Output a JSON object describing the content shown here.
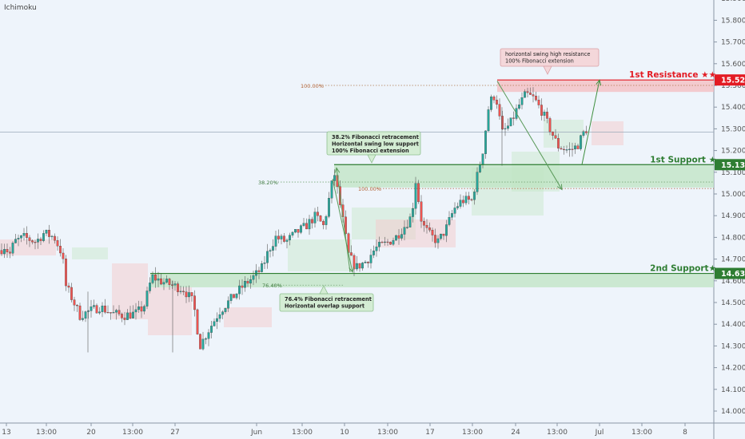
{
  "indicator_label": "Ichimoku",
  "chart_data": {
    "type": "candlestick",
    "ylim": [
      13.95,
      15.92
    ],
    "y_ticks": [
      15.9,
      15.8,
      15.7,
      15.6,
      15.5,
      15.4,
      15.3,
      15.2,
      15.1,
      15.0,
      14.9,
      14.8,
      14.7,
      14.6,
      14.5,
      14.4,
      14.3,
      14.2,
      14.1,
      14.0
    ],
    "y_tick_labels": [
      "15.900",
      "15.800",
      "15.700",
      "15.600",
      "15.500",
      "15.400",
      "15.300",
      "15.200",
      "15.100",
      "15.000",
      "14.900",
      "14.800",
      "14.700",
      "14.600",
      "14.500",
      "14.400",
      "14.300",
      "14.200",
      "14.100",
      "14.000"
    ],
    "x_labels": [
      "13",
      "13:00",
      "20",
      "13:00",
      "27",
      "Jun",
      "13:00",
      "10",
      "13:00",
      "17",
      "13:00",
      "24",
      "13:00",
      "Jul",
      "13:00",
      "8"
    ],
    "current_price": 15.285,
    "levels": [
      {
        "name": "1st Resistance ★★",
        "value": 15.525,
        "label": "15.525",
        "color": "#e31b23"
      },
      {
        "name": "1st Support ★",
        "value": 15.135,
        "label": "15.135",
        "color": "#2e7d32"
      },
      {
        "name": "2nd Support★",
        "value": 14.634,
        "label": "14.634",
        "color": "#2e7d32"
      }
    ],
    "fib_labels": [
      "100.00%",
      "38.20%",
      "100.00%",
      "76.40%"
    ],
    "annotations": [
      {
        "lines": [
          "horizontal swing high resistance",
          "100% Fibonacci extension"
        ]
      },
      {
        "lines": [
          "38.2% Fibonacci retracement",
          "Horizontal swing low support",
          "100% Fibonacci extension"
        ]
      },
      {
        "lines": [
          "76.4% Fibonacci retracement",
          "Horizontal overlap support"
        ]
      }
    ],
    "waypoints": [
      [
        0,
        14.74
      ],
      [
        6,
        14.76
      ],
      [
        12,
        14.72
      ],
      [
        18,
        14.78
      ],
      [
        30,
        14.8
      ],
      [
        45,
        14.78
      ],
      [
        55,
        14.82
      ],
      [
        68,
        14.8
      ],
      [
        78,
        14.72
      ],
      [
        82,
        14.58
      ],
      [
        90,
        14.52
      ],
      [
        100,
        14.44
      ],
      [
        112,
        14.46
      ],
      [
        125,
        14.48
      ],
      [
        140,
        14.45
      ],
      [
        155,
        14.44
      ],
      [
        170,
        14.45
      ],
      [
        180,
        14.48
      ],
      [
        190,
        14.62
      ],
      [
        200,
        14.6
      ],
      [
        215,
        14.58
      ],
      [
        230,
        14.56
      ],
      [
        242,
        14.5
      ],
      [
        250,
        14.3
      ],
      [
        262,
        14.38
      ],
      [
        275,
        14.46
      ],
      [
        290,
        14.52
      ],
      [
        305,
        14.58
      ],
      [
        318,
        14.62
      ],
      [
        328,
        14.66
      ],
      [
        336,
        14.74
      ],
      [
        345,
        14.8
      ],
      [
        358,
        14.78
      ],
      [
        370,
        14.82
      ],
      [
        382,
        14.85
      ],
      [
        395,
        14.9
      ],
      [
        405,
        14.85
      ],
      [
        418,
        15.1
      ],
      [
        428,
        14.9
      ],
      [
        436,
        14.72
      ],
      [
        445,
        14.66
      ],
      [
        458,
        14.69
      ],
      [
        470,
        14.75
      ],
      [
        482,
        14.77
      ],
      [
        495,
        14.8
      ],
      [
        508,
        14.86
      ],
      [
        515,
        14.9
      ],
      [
        520,
        15.06
      ],
      [
        528,
        14.86
      ],
      [
        538,
        14.81
      ],
      [
        548,
        14.78
      ],
      [
        558,
        14.84
      ],
      [
        568,
        14.93
      ],
      [
        578,
        14.97
      ],
      [
        590,
        14.97
      ],
      [
        598,
        15.1
      ],
      [
        604,
        15.2
      ],
      [
        612,
        15.42
      ],
      [
        620,
        15.46
      ],
      [
        628,
        15.28
      ],
      [
        638,
        15.32
      ],
      [
        648,
        15.4
      ],
      [
        658,
        15.46
      ],
      [
        668,
        15.44
      ],
      [
        678,
        15.38
      ],
      [
        688,
        15.3
      ],
      [
        698,
        15.22
      ],
      [
        712,
        15.2
      ],
      [
        722,
        15.22
      ],
      [
        730,
        15.28
      ],
      [
        738,
        15.32
      ]
    ]
  }
}
